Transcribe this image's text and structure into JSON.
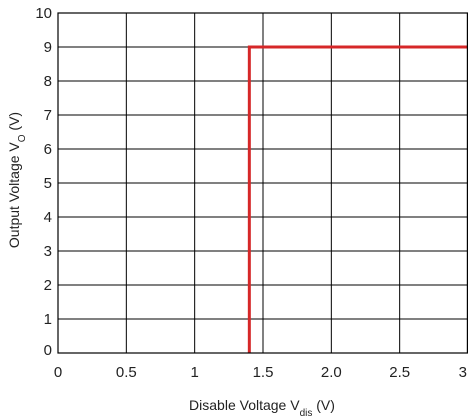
{
  "chart_data": {
    "type": "line",
    "xlabel": {
      "main": "Disable Voltage V",
      "sub": "dis",
      "unit": " (V)"
    },
    "ylabel": {
      "main": "Output Voltage V",
      "sub": "O",
      "unit": " (V)"
    },
    "xlim": [
      0,
      3
    ],
    "ylim": [
      0,
      10
    ],
    "x_ticks": [
      0,
      0.5,
      1,
      1.5,
      2,
      2.5,
      3
    ],
    "x_tick_labels": [
      "0",
      "0.5",
      "1",
      "1.5",
      "2.0",
      "2.5",
      "3"
    ],
    "y_ticks": [
      0,
      1,
      2,
      3,
      4,
      5,
      6,
      7,
      8,
      9,
      10
    ],
    "y_tick_labels": [
      "0",
      "1",
      "2",
      "3",
      "4",
      "5",
      "6",
      "7",
      "8",
      "9",
      "10"
    ],
    "grid": true,
    "colors": {
      "series": "#d62728",
      "grid": "#000000"
    },
    "series": [
      {
        "x": [
          1.4,
          1.4,
          3.0
        ],
        "y": [
          0,
          9,
          9
        ]
      }
    ]
  }
}
